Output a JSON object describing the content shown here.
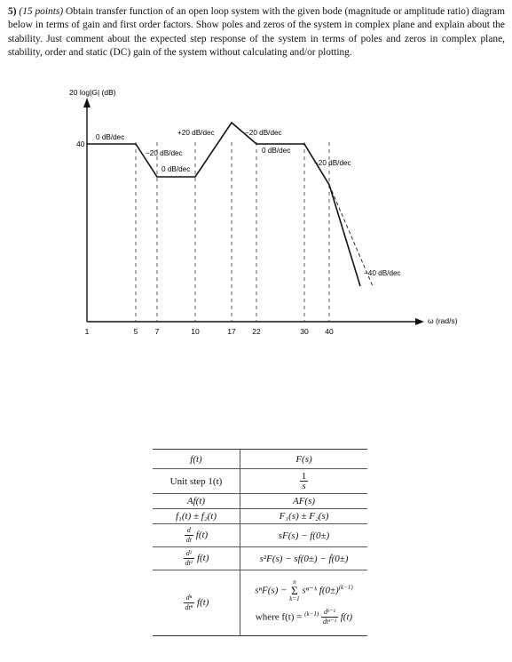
{
  "question": {
    "number": "5)",
    "points": "(15 points)",
    "text": "Obtain transfer function of an open loop system with the given bode (magnitude or amplitude ratio) diagram below in terms of gain and first order factors. Show poles and zeros of the system in complex plane and explain about the stability. Just comment about the expected step response of the system in terms of poles and zeros in complex plane, stability, order and static (DC) gain of the system without calculating and/or plotting."
  },
  "chart_data": {
    "type": "line",
    "ylabel": "20 log|G| (dB)",
    "xlabel": "ω (rad/s)",
    "x_ticks": [
      "1",
      "5",
      "7",
      "10",
      "17",
      "22",
      "30",
      "40"
    ],
    "y_ticks": [
      "40"
    ],
    "series": [
      {
        "points": [
          [
            1,
            40
          ],
          [
            5,
            40
          ],
          [
            7,
            30
          ],
          [
            10,
            30
          ],
          [
            17,
            45
          ],
          [
            22,
            40
          ],
          [
            30,
            40
          ],
          [
            40,
            35
          ],
          [
            55,
            0
          ]
        ]
      }
    ],
    "asymptote_extension": {
      "points": [
        [
          40,
          35
        ],
        [
          60,
          0
        ]
      ]
    },
    "slope_labels": [
      "0 dB/dec",
      "−20 dB/dec",
      "0 dB/dec",
      "+20 dB/dec",
      "−20 dB/dec",
      "0 dB/dec",
      "−20 dB/dec",
      "−40 dB/dec"
    ]
  },
  "table": {
    "rows": [
      {
        "f": "f(t)",
        "F": "F(s)"
      },
      {
        "f": "Unit step 1(t)",
        "F_num": "1",
        "F_den": "s"
      },
      {
        "f": "Af(t)",
        "F": "AF(s)"
      },
      {
        "f": "f₁(t) ± f₂(t)",
        "F": "F₁(s) ± F₂(s)"
      },
      {
        "f_num": "d",
        "f_den": "dt",
        "f_fn": "f(t)",
        "F": "sF(s) − f(0±)"
      },
      {
        "f_num": "d²",
        "f_den": "dt²",
        "f_fn": "f(t)",
        "F": "s²F(s) − sf(0±) − ḟ(0±)"
      },
      {
        "f_num": "dⁿ",
        "f_den": "dtⁿ",
        "f_fn": "f(t)",
        "F_line1_a": "sⁿF(s) − ",
        "F_sum_top": "n",
        "F_sum": "Σ",
        "F_sum_bottom": "k=1",
        "F_line1_b": "sⁿ⁻ᵏ f(0±)",
        "F_sup": "(k−1)",
        "F_line2_a": "where f(t) = ",
        "F_line2_sup": "(k−1)",
        "F_line2_num": "dᵏ⁻¹",
        "F_line2_den": "dtᵏ⁻¹",
        "F_line2_fn": "f(t)"
      }
    ]
  }
}
